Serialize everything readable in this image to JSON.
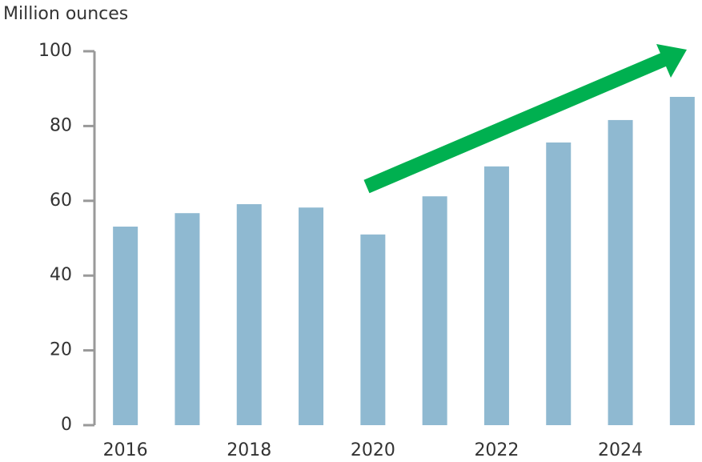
{
  "chart_data": {
    "type": "bar",
    "y_axis_label": "Million ounces",
    "categories": [
      "2016",
      null,
      "2018",
      null,
      "2020",
      null,
      "2022",
      null,
      "2024",
      null
    ],
    "values": [
      53.1,
      56.7,
      59.1,
      58.2,
      51.0,
      61.2,
      69.2,
      75.6,
      81.6,
      87.8
    ],
    "color": "#8fb9d1",
    "ylim": [
      0,
      100
    ],
    "yticks": [
      0,
      20,
      40,
      60,
      80,
      100
    ],
    "grid": false
  }
}
